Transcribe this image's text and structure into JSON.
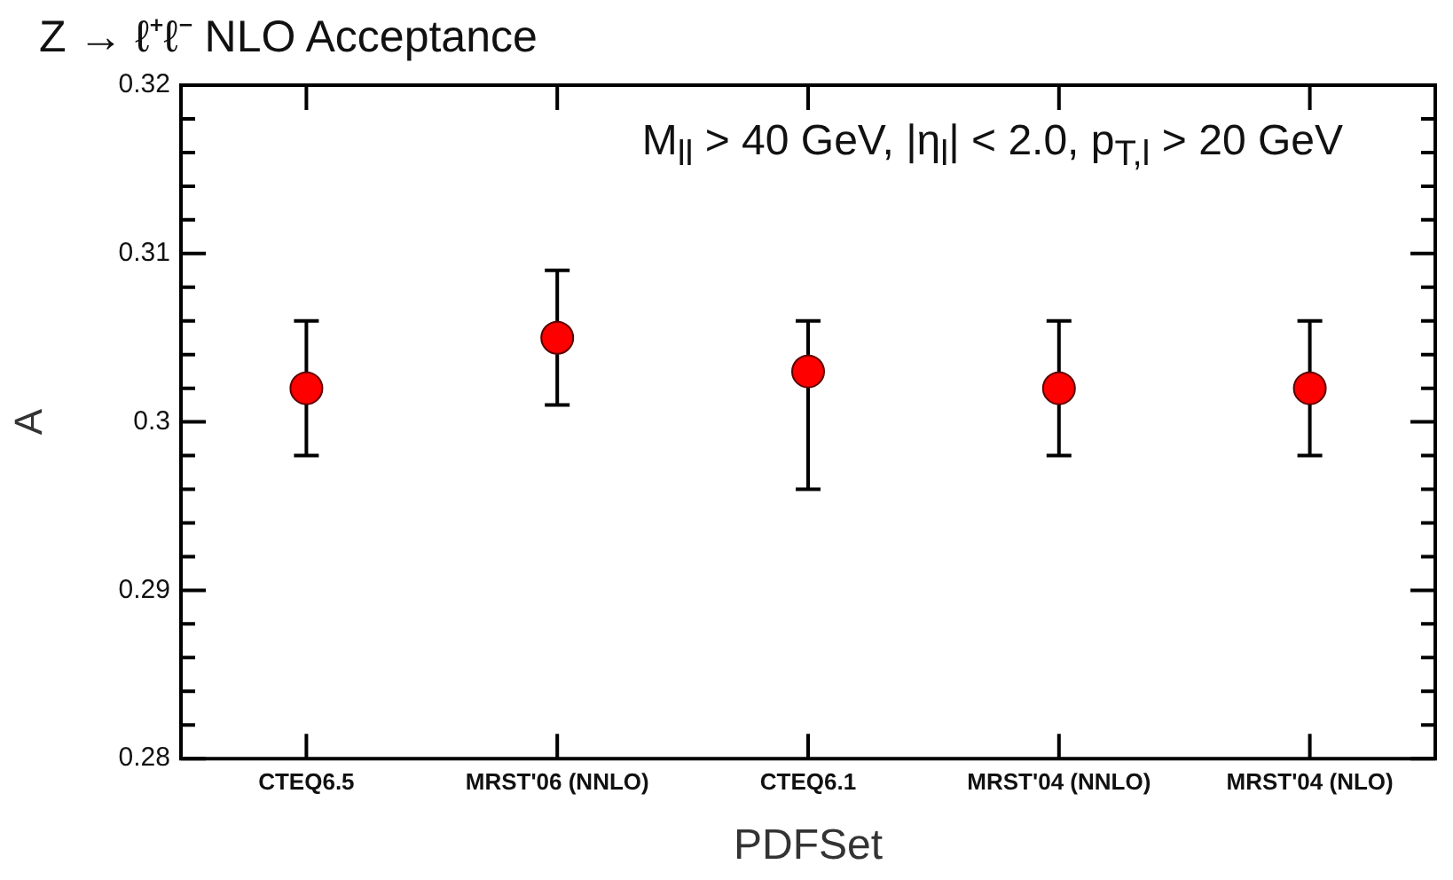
{
  "chart_data": {
    "type": "scatter",
    "title": "Z → ℓ⁺ℓ⁻ NLO Acceptance",
    "xlabel": "PDFSet",
    "ylabel": "A",
    "annotations": [
      "M$_{ll}$ > 40 GeV, |η$_{l}$| < 2.0, p$_{T,l}$ > 20 GeV"
    ],
    "categories": [
      "CTEQ6.5",
      "MRST'06 (NNLO)",
      "CTEQ6.1",
      "MRST'04 (NNLO)",
      "MRST'04 (NLO)"
    ],
    "series": [
      {
        "color": "#ff0000",
        "values": [
          0.302,
          0.305,
          0.303,
          0.302,
          0.302
        ],
        "errors": [
          [
            0.298,
            0.306
          ],
          [
            0.301,
            0.309
          ],
          [
            0.296,
            0.306
          ],
          [
            0.298,
            0.306
          ],
          [
            0.298,
            0.306
          ]
        ]
      }
    ],
    "ylim": [
      0.28,
      0.32
    ],
    "yticks": [
      0.28,
      {
        "value": 0.282,
        "label": null
      },
      {
        "value": 0.284,
        "label": null
      },
      {
        "value": 0.286,
        "label": null
      },
      {
        "value": 0.288,
        "label": null
      },
      0.29,
      {
        "value": 0.292,
        "label": null
      },
      {
        "value": 0.294,
        "label": null
      },
      {
        "value": 0.296,
        "label": null
      },
      {
        "value": 0.298,
        "label": null
      },
      0.3,
      {
        "value": 0.302,
        "label": null
      },
      {
        "value": 0.304,
        "label": null
      },
      {
        "value": 0.306,
        "label": null
      },
      {
        "value": 0.308,
        "label": null
      },
      0.31,
      {
        "value": 0.312,
        "label": null
      },
      {
        "value": 0.314,
        "label": null
      },
      {
        "value": 0.316,
        "label": null
      },
      {
        "value": 0.318,
        "label": null
      },
      0.32
    ],
    "grid": false,
    "legend": false,
    "marker": "circle"
  }
}
